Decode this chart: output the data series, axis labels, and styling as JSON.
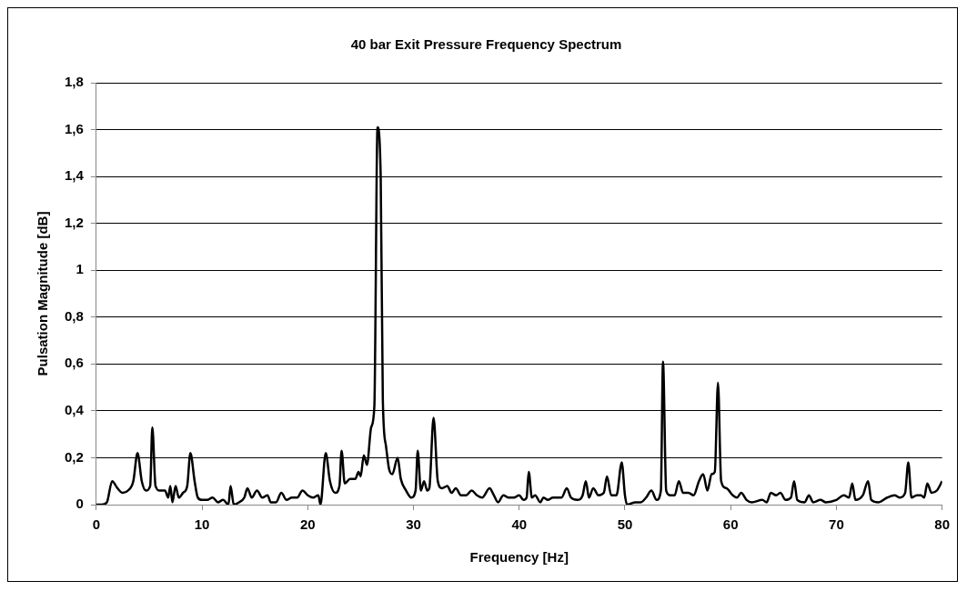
{
  "chart_data": {
    "type": "line",
    "title": "40 bar Exit Pressure Frequency Spectrum",
    "xlabel": "Frequency [Hz]",
    "ylabel": "Pulsation Magnitude [dB]",
    "x": [
      0,
      0.5,
      1,
      1.5,
      2,
      2.5,
      3,
      3.5,
      3.9,
      4.3,
      4.7,
      5.1,
      5.3,
      5.6,
      6,
      6.5,
      6.8,
      7,
      7.2,
      7.5,
      7.8,
      8.2,
      8.6,
      8.9,
      9.3,
      9.6,
      10,
      10.5,
      11,
      11.5,
      12,
      12.5,
      12.7,
      13,
      13.5,
      14,
      14.3,
      14.7,
      15.2,
      15.7,
      16.2,
      16.5,
      17,
      17.5,
      18,
      18.5,
      19,
      19.5,
      20,
      20.5,
      21,
      21.2,
      21.7,
      22.1,
      22.6,
      23,
      23.2,
      23.5,
      24,
      24.5,
      24.8,
      25,
      25.3,
      25.6,
      26,
      26.3,
      26.6,
      26.9,
      27.1,
      27.4,
      27.7,
      28,
      28.5,
      28.8,
      29.3,
      29.8,
      30.2,
      30.4,
      30.7,
      31,
      31.3,
      31.5,
      31.9,
      32.3,
      32.7,
      33.2,
      33.6,
      34,
      34.5,
      35,
      35.5,
      36,
      36.5,
      37.2,
      37.6,
      38,
      38.5,
      39,
      39.5,
      40,
      40.4,
      40.7,
      40.9,
      41.2,
      41.5,
      42,
      42.3,
      42.7,
      43.2,
      44,
      44.5,
      44.9,
      45.5,
      46,
      46.3,
      46.6,
      47,
      47.5,
      48,
      48.3,
      48.7,
      49.2,
      49.7,
      50,
      50.2,
      51,
      51.5,
      52,
      52.5,
      53,
      53.4,
      53.6,
      53.9,
      54.3,
      54.7,
      55.1,
      55.5,
      56,
      56.5,
      57,
      57.4,
      57.8,
      58.2,
      58.5,
      58.8,
      59.1,
      59.6,
      60.2,
      60.6,
      61,
      61.5,
      62,
      63,
      63.4,
      63.8,
      64.3,
      64.7,
      65.2,
      65.7,
      66,
      66.3,
      67,
      67.4,
      67.8,
      68.5,
      69,
      70,
      70.7,
      71.2,
      71.5,
      71.8,
      72.5,
      73,
      73.3,
      74,
      74.8,
      75.5,
      76,
      76.5,
      76.8,
      77.1,
      77.6,
      78,
      78.3,
      78.6,
      79,
      79.5,
      80
    ],
    "series": [
      {
        "color": "#000000",
        "values": [
          0,
          0,
          0.01,
          0.1,
          0.07,
          0.05,
          0.06,
          0.1,
          0.22,
          0.1,
          0.06,
          0.08,
          0.33,
          0.08,
          0.06,
          0.06,
          0.03,
          0.08,
          0.01,
          0.08,
          0.03,
          0.05,
          0.08,
          0.22,
          0.1,
          0.03,
          0.02,
          0.02,
          0.03,
          0.01,
          0.02,
          0,
          0.08,
          0,
          0.01,
          0.03,
          0.07,
          0.03,
          0.06,
          0.03,
          0.04,
          0.01,
          0.01,
          0.05,
          0.02,
          0.03,
          0.03,
          0.06,
          0.04,
          0.03,
          0.04,
          0,
          0.22,
          0.1,
          0.05,
          0.08,
          0.23,
          0.09,
          0.11,
          0.11,
          0.14,
          0.12,
          0.21,
          0.17,
          0.33,
          0.42,
          1.61,
          1.4,
          0.45,
          0.25,
          0.15,
          0.13,
          0.2,
          0.11,
          0.06,
          0.03,
          0.06,
          0.23,
          0.06,
          0.1,
          0.06,
          0.07,
          0.37,
          0.1,
          0.07,
          0.08,
          0.05,
          0.07,
          0.04,
          0.04,
          0.06,
          0.04,
          0.03,
          0.07,
          0.04,
          0.01,
          0.04,
          0.03,
          0.03,
          0.04,
          0.02,
          0.03,
          0.14,
          0.03,
          0.04,
          0.01,
          0.03,
          0.02,
          0.03,
          0.03,
          0.07,
          0.03,
          0.02,
          0.04,
          0.1,
          0.03,
          0.07,
          0.04,
          0.05,
          0.12,
          0.04,
          0.04,
          0.18,
          0.04,
          0,
          0.01,
          0.01,
          0.03,
          0.06,
          0.02,
          0.06,
          0.61,
          0.06,
          0.04,
          0.04,
          0.1,
          0.05,
          0.05,
          0.04,
          0.1,
          0.13,
          0.06,
          0.13,
          0.14,
          0.52,
          0.1,
          0.07,
          0.04,
          0.03,
          0.05,
          0.02,
          0.01,
          0.02,
          0.01,
          0.05,
          0.04,
          0.05,
          0.02,
          0.03,
          0.1,
          0.02,
          0.01,
          0.04,
          0.01,
          0.02,
          0.01,
          0.02,
          0.04,
          0.03,
          0.09,
          0.02,
          0.04,
          0.1,
          0.02,
          0.01,
          0.03,
          0.04,
          0.03,
          0.05,
          0.18,
          0.03,
          0.04,
          0.04,
          0.03,
          0.09,
          0.05,
          0.06,
          0.1
        ]
      }
    ],
    "xlim": [
      0,
      80
    ],
    "xticks": [
      0,
      10,
      20,
      30,
      40,
      50,
      60,
      70,
      80
    ],
    "ylim": [
      0,
      1.8
    ],
    "yticks": [
      0,
      {
        "value": 0.2,
        "label": "0,2"
      },
      {
        "value": 0.4,
        "label": "0,4"
      },
      {
        "value": 0.6,
        "label": "0,6"
      },
      {
        "value": 0.8,
        "label": "0,8"
      },
      1,
      {
        "value": 1.2,
        "label": "1,2"
      },
      {
        "value": 1.4,
        "label": "1,4"
      },
      {
        "value": 1.6,
        "label": "1,6"
      },
      {
        "value": 1.8,
        "label": "1,8"
      }
    ],
    "grid": "y",
    "legend": false,
    "marker": "none",
    "line_style": "solid"
  }
}
